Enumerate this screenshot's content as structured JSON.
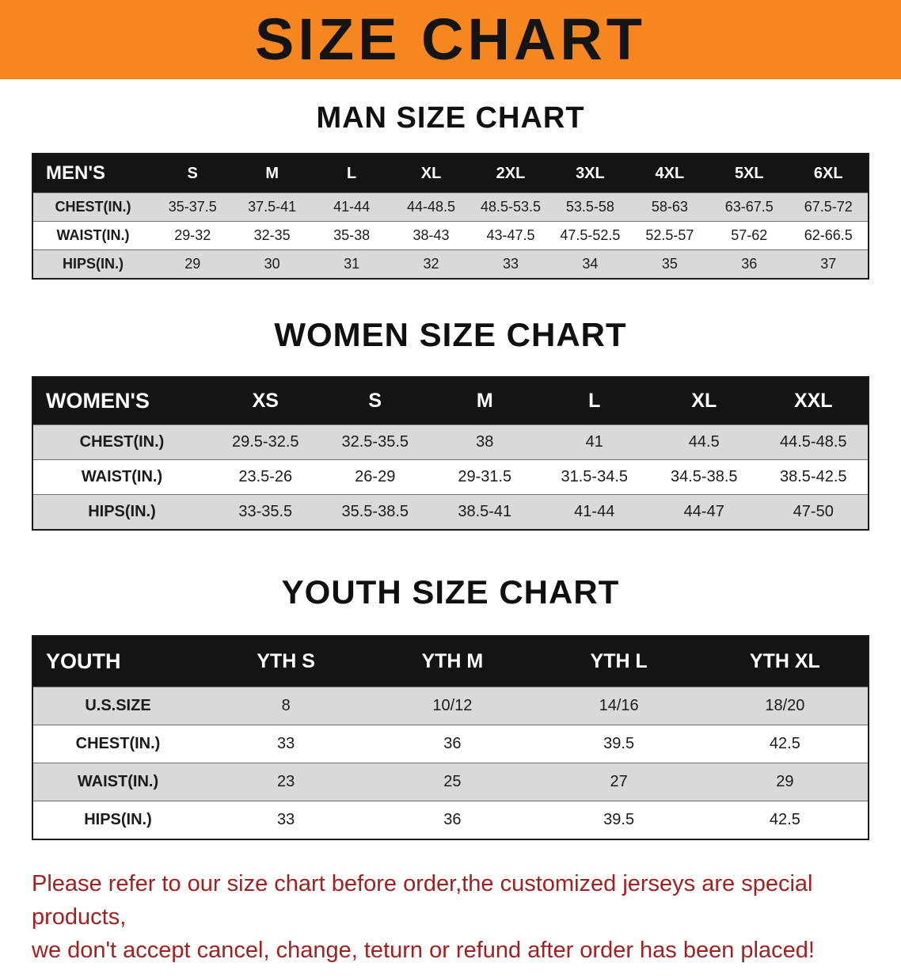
{
  "banner": {
    "title": "SIZE CHART"
  },
  "sections": [
    {
      "heading": "MAN SIZE CHART",
      "table": {
        "label": "MEN'S",
        "columns": [
          "S",
          "M",
          "L",
          "XL",
          "2XL",
          "3XL",
          "4XL",
          "5XL",
          "6XL"
        ],
        "rows": [
          {
            "label": "CHEST(IN.)",
            "values": [
              "35-37.5",
              "37.5-41",
              "41-44",
              "44-48.5",
              "48.5-53.5",
              "53.5-58",
              "58-63",
              "63-67.5",
              "67.5-72"
            ]
          },
          {
            "label": "WAIST(IN.)",
            "values": [
              "29-32",
              "32-35",
              "35-38",
              "38-43",
              "43-47.5",
              "47.5-52.5",
              "52.5-57",
              "57-62",
              "62-66.5"
            ]
          },
          {
            "label": "HIPS(IN.)",
            "values": [
              "29",
              "30",
              "31",
              "32",
              "33",
              "34",
              "35",
              "36",
              "37"
            ]
          }
        ]
      }
    },
    {
      "heading": "WOMEN SIZE CHART",
      "table": {
        "label": "WOMEN'S",
        "columns": [
          "XS",
          "S",
          "M",
          "L",
          "XL",
          "XXL"
        ],
        "rows": [
          {
            "label": "CHEST(IN.)",
            "values": [
              "29.5-32.5",
              "32.5-35.5",
              "38",
              "41",
              "44.5",
              "44.5-48.5"
            ]
          },
          {
            "label": "WAIST(IN.)",
            "values": [
              "23.5-26",
              "26-29",
              "29-31.5",
              "31.5-34.5",
              "34.5-38.5",
              "38.5-42.5"
            ]
          },
          {
            "label": "HIPS(IN.)",
            "values": [
              "33-35.5",
              "35.5-38.5",
              "38.5-41",
              "41-44",
              "44-47",
              "47-50"
            ]
          }
        ]
      }
    },
    {
      "heading": "YOUTH SIZE CHART",
      "table": {
        "label": "YOUTH",
        "columns": [
          "YTH S",
          "YTH M",
          "YTH L",
          "YTH XL"
        ],
        "rows": [
          {
            "label": "U.S.SIZE",
            "values": [
              "8",
              "10/12",
              "14/16",
              "18/20"
            ]
          },
          {
            "label": "CHEST(IN.)",
            "values": [
              "33",
              "36",
              "39.5",
              "42.5"
            ]
          },
          {
            "label": "WAIST(IN.)",
            "values": [
              "23",
              "25",
              "27",
              "29"
            ]
          },
          {
            "label": "HIPS(IN.)",
            "values": [
              "33",
              "36",
              "39.5",
              "42.5"
            ]
          }
        ]
      }
    }
  ],
  "disclaimer": {
    "line1": "Please refer to our size chart before order,the customized jerseys are special products,",
    "line2": "we don't accept cancel, change, teturn or refund after order has been placed!"
  },
  "colors": {
    "banner_orange": "#f6861f",
    "header_black": "#141414",
    "row_gray": "#d9d9d9",
    "disclaimer_red": "#a32020"
  }
}
